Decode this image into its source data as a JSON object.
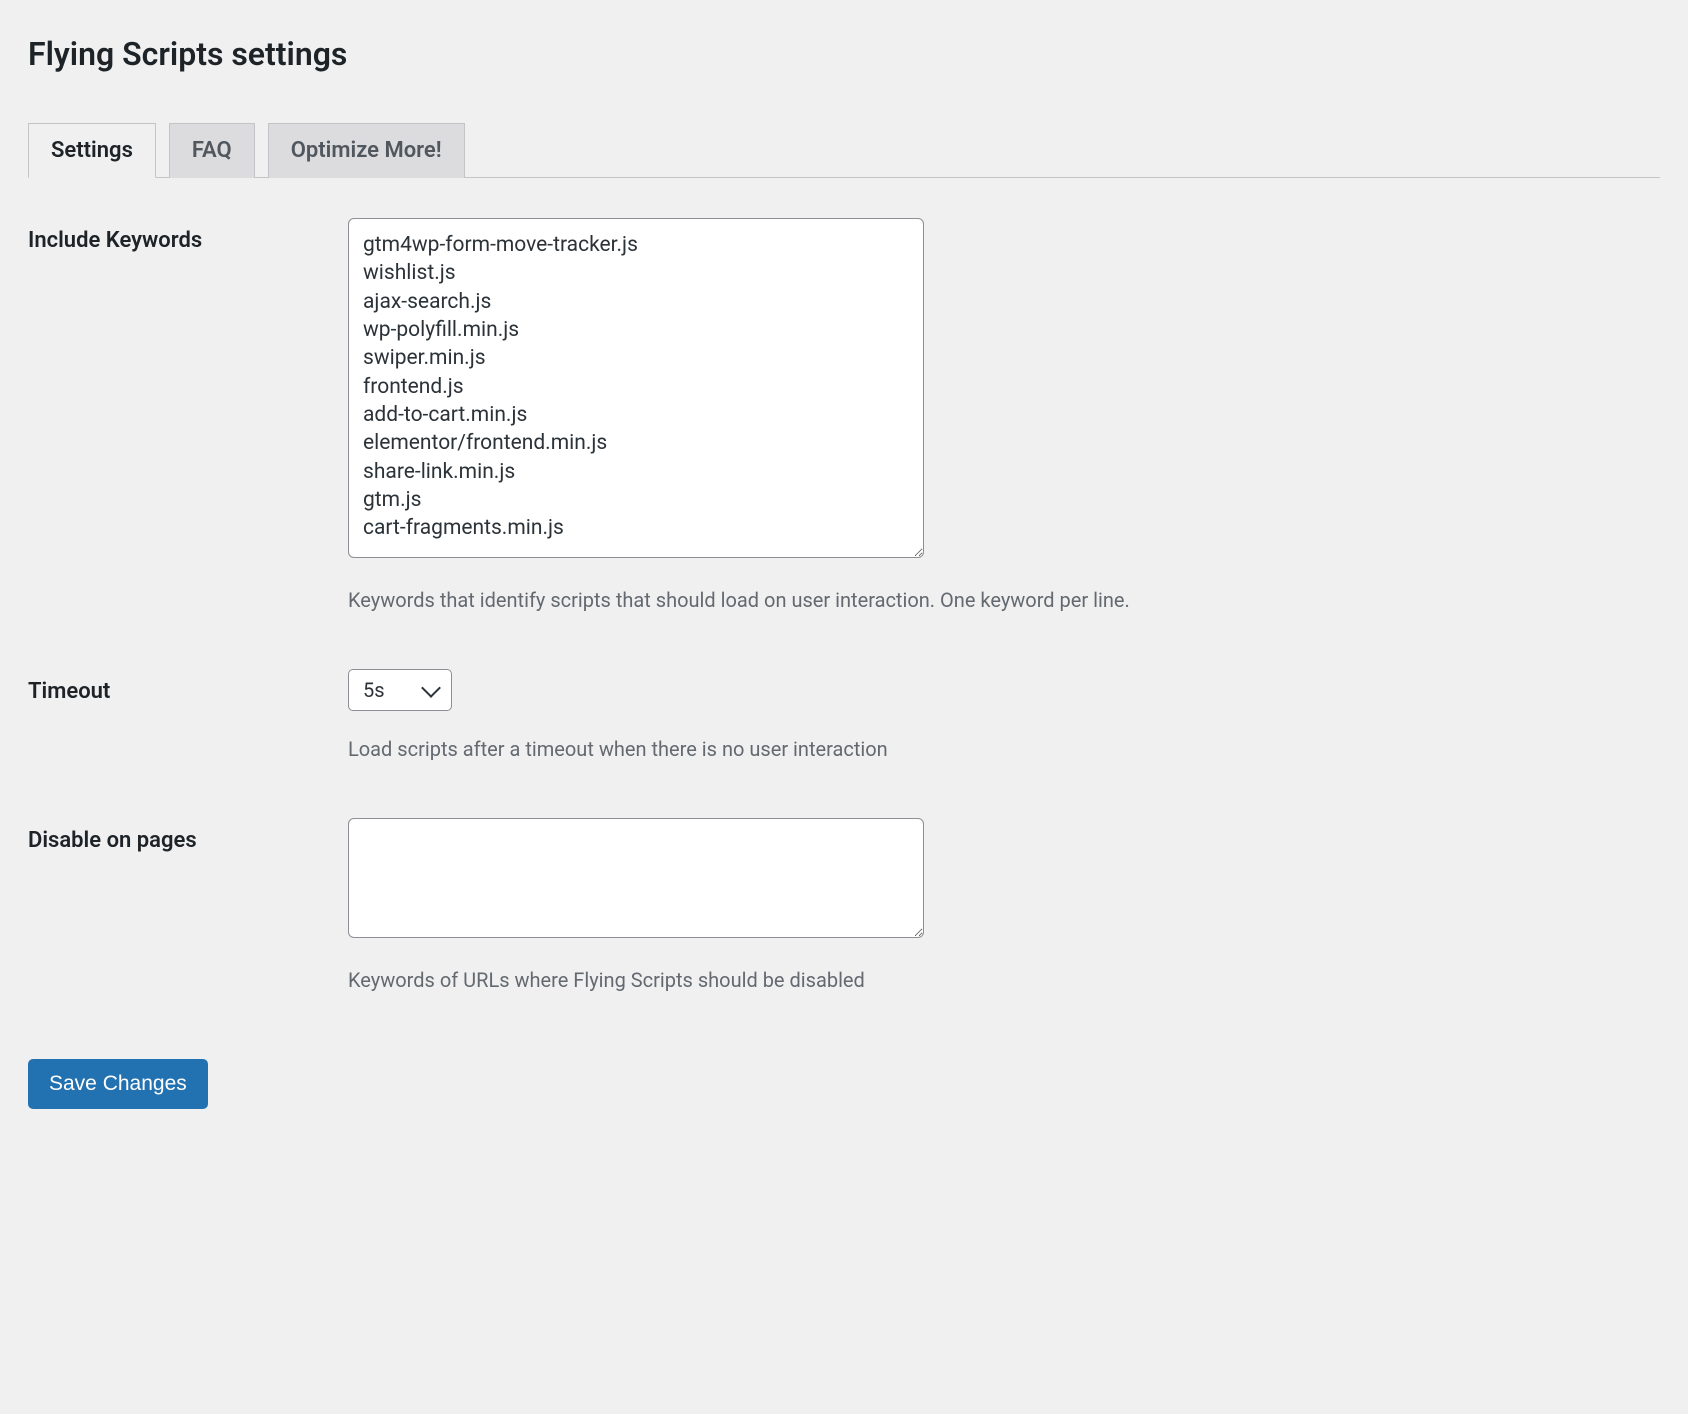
{
  "page": {
    "title": "Flying Scripts settings"
  },
  "tabs": {
    "items": [
      {
        "label": "Settings",
        "active": true
      },
      {
        "label": "FAQ",
        "active": false
      },
      {
        "label": "Optimize More!",
        "active": false
      }
    ]
  },
  "form": {
    "include_keywords": {
      "label": "Include Keywords",
      "value": "gtm4wp-form-move-tracker.js\nwishlist.js\najax-search.js\nwp-polyfill.min.js\nswiper.min.js\nfrontend.js\nadd-to-cart.min.js\nelementor/frontend.min.js\nshare-link.min.js\ngtm.js\ncart-fragments.min.js",
      "description": "Keywords that identify scripts that should load on user interaction. One keyword per line."
    },
    "timeout": {
      "label": "Timeout",
      "value": "5s",
      "description": "Load scripts after a timeout when there is no user interaction"
    },
    "disable_on_pages": {
      "label": "Disable on pages",
      "value": "",
      "description": "Keywords of URLs where Flying Scripts should be disabled"
    }
  },
  "actions": {
    "save_label": "Save Changes"
  },
  "colors": {
    "background": "#f0f0f1",
    "text": "#1d2327",
    "muted_text": "#646970",
    "tab_inactive_bg": "#dcdcde",
    "tab_border": "#c3c4c7",
    "input_border": "#8c8f94",
    "button_bg": "#2271b1",
    "button_text": "#ffffff"
  }
}
